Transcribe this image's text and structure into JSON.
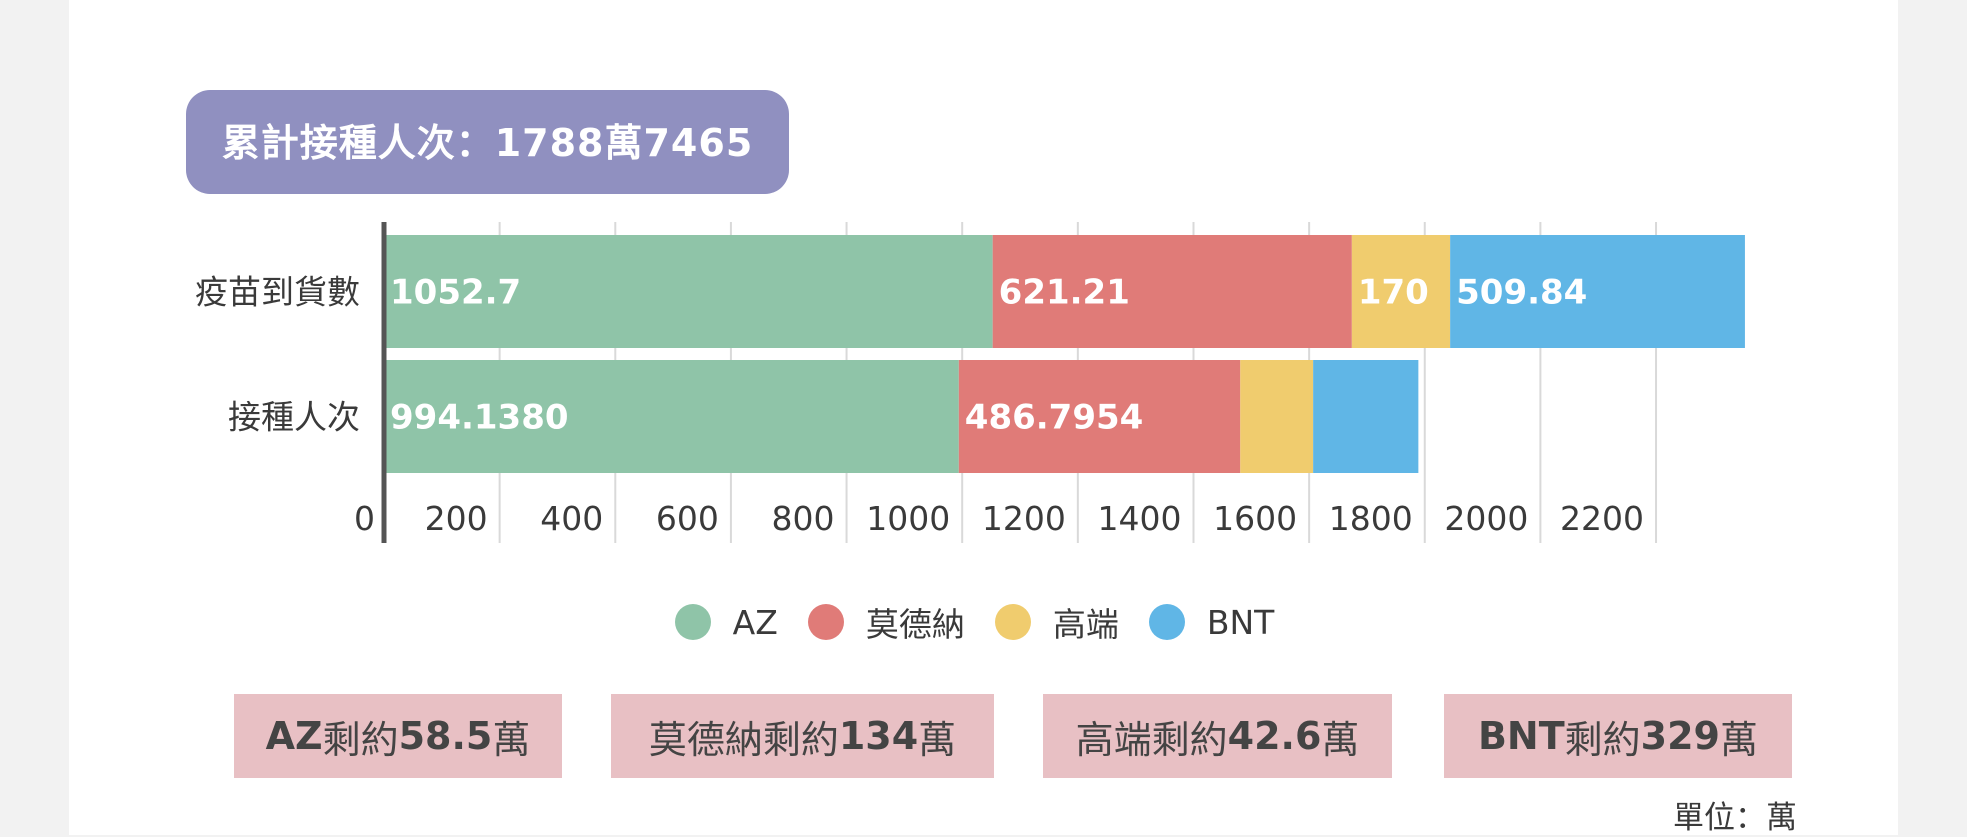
{
  "header": {
    "title": "累計接種人次：1788萬7465"
  },
  "colors": {
    "AZ": "#8fc4a8",
    "莫德納": "#e07b78",
    "高端": "#f0cc6e",
    "BNT": "#60b6e6",
    "title_pill": "#9090c0",
    "note_box": "#e8c0c4"
  },
  "chart_data": {
    "type": "bar",
    "orientation": "horizontal",
    "stacked": true,
    "title": "",
    "xlabel": "",
    "ylabel": "",
    "xlim": [
      0,
      2400
    ],
    "x_tick_labels": [
      "0",
      "200",
      "400",
      "600",
      "800",
      "1000",
      "1200",
      "1400",
      "1600",
      "1800",
      "2000",
      "2200"
    ],
    "x_ticks": [
      0,
      200,
      400,
      600,
      800,
      1000,
      1200,
      1400,
      1600,
      1800,
      2000,
      2200
    ],
    "categories": [
      "疫苗到貨數",
      "接種人次"
    ],
    "series": [
      {
        "name": "AZ",
        "values": [
          1052.7,
          994.138
        ],
        "labels": [
          "1052.7",
          "994.1380"
        ]
      },
      {
        "name": "莫德納",
        "values": [
          621.21,
          486.7954
        ],
        "labels": [
          "621.21",
          "486.7954"
        ]
      },
      {
        "name": "高端",
        "values": [
          170,
          126
        ],
        "labels": [
          "170",
          ""
        ]
      },
      {
        "name": "BNT",
        "values": [
          509.84,
          182
        ],
        "labels": [
          "509.84",
          ""
        ]
      }
    ],
    "grid": true,
    "legend_position": "bottom"
  },
  "legend": [
    "AZ",
    "莫德納",
    "高端",
    "BNT"
  ],
  "notes": [
    {
      "parts": [
        "AZ ",
        "剩約",
        "58.5",
        "萬"
      ]
    },
    {
      "parts": [
        "莫德納 ",
        "剩約",
        "134",
        "萬"
      ]
    },
    {
      "parts": [
        "高端 ",
        "剩約",
        "42.6",
        "萬"
      ]
    },
    {
      "parts": [
        "BNT",
        "剩約",
        "329",
        "萬"
      ]
    }
  ],
  "unit_note": "單位：萬"
}
